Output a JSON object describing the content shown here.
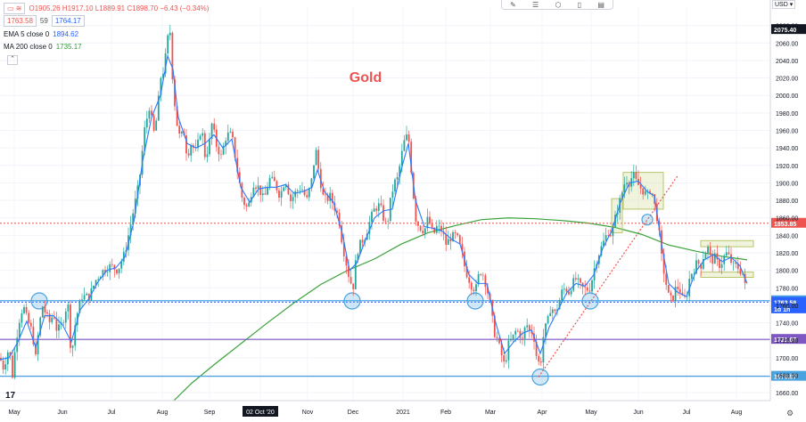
{
  "header": {
    "bid": "1763.58",
    "spread": "59",
    "ask": "1764.17",
    "ohlc": "O1905.26 H1917.10 L1889.91 C1898.70 −6.43 (−0.34%)",
    "ema_label": "EMA 5 close 0",
    "ema_value": "1894.62",
    "ma_label": "MA 200 close 0",
    "ma_value": "1735.17"
  },
  "currency": "USD",
  "chart_data": {
    "type": "candlestick",
    "title": "Gold",
    "ylim": [
      1651,
      2101
    ],
    "y_ticks": [
      "2080.00",
      "2060.00",
      "2040.00",
      "2020.00",
      "2000.00",
      "1980.00",
      "1960.00",
      "1940.00",
      "1920.00",
      "1900.00",
      "1880.00",
      "1860.00",
      "1840.00",
      "1820.00",
      "1800.00",
      "1780.00",
      "1760.00",
      "1740.00",
      "1720.00",
      "1700.00",
      "1680.00",
      "1660.00"
    ],
    "x_labels": [
      "May",
      "Jun",
      "Jul",
      "Aug",
      "Sep",
      "02 Oct '20",
      "Nov",
      "Dec",
      "2021",
      "Feb",
      "Mar",
      "Apr",
      "May",
      "Jun",
      "Jul",
      "Aug"
    ],
    "x_highlight": "02 Oct '20",
    "price_path": [
      [
        0,
        1700
      ],
      [
        4,
        1688
      ],
      [
        10,
        1712
      ],
      [
        14,
        1680
      ],
      [
        18,
        1720
      ],
      [
        22,
        1745
      ],
      [
        26,
        1760
      ],
      [
        30,
        1745
      ],
      [
        36,
        1730
      ],
      [
        40,
        1700
      ],
      [
        44,
        1738
      ],
      [
        48,
        1760
      ],
      [
        52,
        1748
      ],
      [
        56,
        1740
      ],
      [
        60,
        1752
      ],
      [
        64,
        1730
      ],
      [
        70,
        1740
      ],
      [
        76,
        1765
      ],
      [
        80,
        1700
      ],
      [
        85,
        1745
      ],
      [
        92,
        1770
      ],
      [
        100,
        1770
      ],
      [
        108,
        1790
      ],
      [
        116,
        1800
      ],
      [
        124,
        1805
      ],
      [
        132,
        1800
      ],
      [
        140,
        1820
      ],
      [
        148,
        1860
      ],
      [
        156,
        1900
      ],
      [
        162,
        1960
      ],
      [
        168,
        1990
      ],
      [
        172,
        1955
      ],
      [
        176,
        1975
      ],
      [
        180,
        2020
      ],
      [
        184,
        2030
      ],
      [
        188,
        2065
      ],
      [
        191,
        2073
      ],
      [
        194,
        2010
      ],
      [
        198,
        1970
      ],
      [
        202,
        1950
      ],
      [
        206,
        1960
      ],
      [
        210,
        1930
      ],
      [
        214,
        1945
      ],
      [
        220,
        1935
      ],
      [
        226,
        1965
      ],
      [
        230,
        1930
      ],
      [
        234,
        1940
      ],
      [
        238,
        1970
      ],
      [
        242,
        1945
      ],
      [
        248,
        1930
      ],
      [
        254,
        1955
      ],
      [
        260,
        1955
      ],
      [
        266,
        1915
      ],
      [
        272,
        1880
      ],
      [
        278,
        1870
      ],
      [
        284,
        1900
      ],
      [
        290,
        1895
      ],
      [
        296,
        1880
      ],
      [
        302,
        1905
      ],
      [
        308,
        1900
      ],
      [
        314,
        1885
      ],
      [
        320,
        1905
      ],
      [
        326,
        1880
      ],
      [
        332,
        1890
      ],
      [
        338,
        1895
      ],
      [
        344,
        1880
      ],
      [
        350,
        1905
      ],
      [
        354,
        1940
      ],
      [
        358,
        1910
      ],
      [
        362,
        1885
      ],
      [
        366,
        1880
      ],
      [
        370,
        1885
      ],
      [
        374,
        1875
      ],
      [
        380,
        1860
      ],
      [
        384,
        1830
      ],
      [
        388,
        1810
      ],
      [
        392,
        1790
      ],
      [
        396,
        1780
      ],
      [
        400,
        1820
      ],
      [
        404,
        1830
      ],
      [
        410,
        1840
      ],
      [
        416,
        1860
      ],
      [
        420,
        1870
      ],
      [
        426,
        1875
      ],
      [
        430,
        1860
      ],
      [
        434,
        1850
      ],
      [
        438,
        1880
      ],
      [
        442,
        1900
      ],
      [
        446,
        1905
      ],
      [
        450,
        1930
      ],
      [
        454,
        1950
      ],
      [
        458,
        1955
      ],
      [
        462,
        1905
      ],
      [
        466,
        1860
      ],
      [
        470,
        1850
      ],
      [
        476,
        1845
      ],
      [
        480,
        1860
      ],
      [
        486,
        1840
      ],
      [
        490,
        1850
      ],
      [
        496,
        1845
      ],
      [
        500,
        1830
      ],
      [
        506,
        1838
      ],
      [
        512,
        1840
      ],
      [
        518,
        1820
      ],
      [
        522,
        1800
      ],
      [
        526,
        1790
      ],
      [
        530,
        1780
      ],
      [
        534,
        1780
      ],
      [
        538,
        1800
      ],
      [
        542,
        1795
      ],
      [
        546,
        1780
      ],
      [
        550,
        1760
      ],
      [
        554,
        1730
      ],
      [
        558,
        1720
      ],
      [
        562,
        1705
      ],
      [
        566,
        1690
      ],
      [
        570,
        1715
      ],
      [
        574,
        1720
      ],
      [
        578,
        1730
      ],
      [
        582,
        1730
      ],
      [
        586,
        1720
      ],
      [
        590,
        1740
      ],
      [
        594,
        1730
      ],
      [
        598,
        1730
      ],
      [
        602,
        1700
      ],
      [
        606,
        1690
      ],
      [
        610,
        1730
      ],
      [
        614,
        1740
      ],
      [
        618,
        1760
      ],
      [
        622,
        1750
      ],
      [
        626,
        1760
      ],
      [
        630,
        1775
      ],
      [
        634,
        1780
      ],
      [
        638,
        1775
      ],
      [
        642,
        1785
      ],
      [
        646,
        1790
      ],
      [
        652,
        1780
      ],
      [
        658,
        1778
      ],
      [
        662,
        1780
      ],
      [
        666,
        1800
      ],
      [
        670,
        1815
      ],
      [
        674,
        1825
      ],
      [
        678,
        1835
      ],
      [
        682,
        1845
      ],
      [
        686,
        1840
      ],
      [
        690,
        1860
      ],
      [
        694,
        1875
      ],
      [
        698,
        1890
      ],
      [
        702,
        1905
      ],
      [
        706,
        1900
      ],
      [
        710,
        1910
      ],
      [
        714,
        1900
      ],
      [
        718,
        1895
      ],
      [
        722,
        1890
      ],
      [
        726,
        1885
      ],
      [
        730,
        1895
      ],
      [
        734,
        1875
      ],
      [
        738,
        1855
      ],
      [
        742,
        1815
      ],
      [
        746,
        1790
      ],
      [
        750,
        1770
      ],
      [
        754,
        1765
      ],
      [
        758,
        1780
      ],
      [
        762,
        1780
      ],
      [
        766,
        1765
      ],
      [
        770,
        1770
      ],
      [
        774,
        1795
      ],
      [
        778,
        1800
      ],
      [
        782,
        1810
      ],
      [
        786,
        1805
      ],
      [
        790,
        1820
      ],
      [
        794,
        1825
      ],
      [
        798,
        1810
      ],
      [
        802,
        1815
      ],
      [
        806,
        1805
      ],
      [
        810,
        1810
      ],
      [
        814,
        1820
      ],
      [
        818,
        1815
      ],
      [
        822,
        1805
      ],
      [
        826,
        1805
      ],
      [
        830,
        1800
      ],
      [
        834,
        1795
      ],
      [
        838,
        1763
      ]
    ],
    "ema_path": [
      [
        0,
        1698
      ],
      [
        10,
        1700
      ],
      [
        20,
        1718
      ],
      [
        30,
        1742
      ],
      [
        40,
        1712
      ],
      [
        50,
        1748
      ],
      [
        60,
        1748
      ],
      [
        70,
        1738
      ],
      [
        80,
        1718
      ],
      [
        90,
        1755
      ],
      [
        100,
        1768
      ],
      [
        110,
        1787
      ],
      [
        120,
        1800
      ],
      [
        130,
        1803
      ],
      [
        140,
        1815
      ],
      [
        150,
        1855
      ],
      [
        160,
        1925
      ],
      [
        170,
        1975
      ],
      [
        180,
        2000
      ],
      [
        188,
        2045
      ],
      [
        194,
        2030
      ],
      [
        200,
        1975
      ],
      [
        210,
        1945
      ],
      [
        220,
        1940
      ],
      [
        230,
        1945
      ],
      [
        240,
        1955
      ],
      [
        250,
        1940
      ],
      [
        260,
        1950
      ],
      [
        270,
        1895
      ],
      [
        280,
        1878
      ],
      [
        290,
        1893
      ],
      [
        300,
        1895
      ],
      [
        310,
        1895
      ],
      [
        320,
        1898
      ],
      [
        330,
        1888
      ],
      [
        340,
        1890
      ],
      [
        350,
        1895
      ],
      [
        356,
        1915
      ],
      [
        364,
        1890
      ],
      [
        374,
        1878
      ],
      [
        384,
        1842
      ],
      [
        392,
        1800
      ],
      [
        400,
        1808
      ],
      [
        410,
        1835
      ],
      [
        420,
        1860
      ],
      [
        430,
        1868
      ],
      [
        440,
        1870
      ],
      [
        450,
        1915
      ],
      [
        458,
        1945
      ],
      [
        466,
        1880
      ],
      [
        476,
        1850
      ],
      [
        486,
        1848
      ],
      [
        496,
        1845
      ],
      [
        506,
        1836
      ],
      [
        516,
        1830
      ],
      [
        526,
        1795
      ],
      [
        536,
        1785
      ],
      [
        546,
        1785
      ],
      [
        556,
        1740
      ],
      [
        566,
        1705
      ],
      [
        576,
        1718
      ],
      [
        586,
        1728
      ],
      [
        596,
        1732
      ],
      [
        606,
        1705
      ],
      [
        616,
        1735
      ],
      [
        626,
        1755
      ],
      [
        636,
        1775
      ],
      [
        646,
        1785
      ],
      [
        656,
        1782
      ],
      [
        666,
        1795
      ],
      [
        676,
        1825
      ],
      [
        686,
        1845
      ],
      [
        696,
        1878
      ],
      [
        706,
        1900
      ],
      [
        716,
        1902
      ],
      [
        726,
        1890
      ],
      [
        734,
        1885
      ],
      [
        742,
        1830
      ],
      [
        750,
        1785
      ],
      [
        760,
        1775
      ],
      [
        770,
        1770
      ],
      [
        780,
        1798
      ],
      [
        790,
        1812
      ],
      [
        800,
        1818
      ],
      [
        810,
        1810
      ],
      [
        820,
        1815
      ],
      [
        830,
        1805
      ],
      [
        838,
        1785
      ]
    ],
    "ma200_path": [
      [
        195,
        1651
      ],
      [
        215,
        1671
      ],
      [
        240,
        1692
      ],
      [
        270,
        1716
      ],
      [
        300,
        1740
      ],
      [
        330,
        1763
      ],
      [
        360,
        1784
      ],
      [
        390,
        1800
      ],
      [
        420,
        1813
      ],
      [
        450,
        1830
      ],
      [
        480,
        1843
      ],
      [
        510,
        1851
      ],
      [
        540,
        1858
      ],
      [
        570,
        1860
      ],
      [
        600,
        1859
      ],
      [
        630,
        1857
      ],
      [
        660,
        1854
      ],
      [
        690,
        1849
      ],
      [
        720,
        1841
      ],
      [
        750,
        1829
      ],
      [
        780,
        1822
      ],
      [
        810,
        1816
      ],
      [
        838,
        1812
      ]
    ],
    "hlines": [
      {
        "label": "2075.40",
        "y": 2075.4,
        "color": "#131722",
        "style": "none"
      },
      {
        "label": "1853.85",
        "y": 1853.85,
        "color": "#ef5350",
        "style": "dotted"
      },
      {
        "label": "1765.30",
        "y": 1765.3,
        "color": "#4aa3df",
        "style": "solid"
      },
      {
        "label": "1763.58",
        "y": 1763.58,
        "color": "#2962ff",
        "style": "dotted"
      },
      {
        "label": "1d 1h",
        "y": 1756,
        "color": "#2962ff",
        "style": "none"
      },
      {
        "label": "1721.07",
        "y": 1721.07,
        "color": "#7e57c2",
        "style": "solid"
      },
      {
        "label": "1678.87",
        "y": 1678.87,
        "color": "#4aa3df",
        "style": "solid"
      }
    ],
    "circles": [
      [
        44,
        1765
      ],
      [
        395,
        1765
      ],
      [
        533,
        1765
      ],
      [
        662,
        1765
      ],
      [
        606,
        1678
      ],
      [
        726,
        1858
      ]
    ],
    "rects": [
      [
        686,
        1843,
        698,
        1882
      ],
      [
        699,
        1912,
        744,
        1870
      ],
      [
        786,
        1834,
        845,
        1827
      ],
      [
        786,
        1798,
        845,
        1792
      ]
    ],
    "trendline": [
      [
        604,
        1678
      ],
      [
        760,
        1908
      ]
    ]
  }
}
